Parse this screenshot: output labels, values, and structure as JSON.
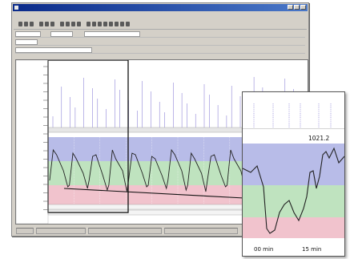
{
  "zoom_panel": {
    "readout": "1021.2",
    "time_labels": [
      "00 min",
      "15 min"
    ]
  },
  "colors": {
    "band_top": "#b8bce8",
    "band_mid": "#bfe3bf",
    "band_low": "#f1c3cd",
    "trace": "#222222",
    "title_bar": "#0a2a8a"
  },
  "icons": [
    "app-icon",
    "minimize-icon",
    "maximize-icon",
    "close-icon",
    "arrow-icon"
  ]
}
